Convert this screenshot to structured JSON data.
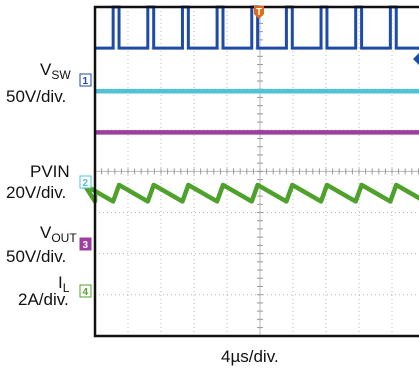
{
  "chart_data": {
    "type": "line",
    "title": "",
    "time_division": "4µs/div.",
    "grid": true,
    "channels": [
      {
        "marker": "1",
        "name_main": "V",
        "name_sub": "SW",
        "scale": "50V/div.",
        "color": "#1f4aa8",
        "waveform": "square",
        "period_div": 1.05,
        "duty": 0.17,
        "low_div": 1.0,
        "high_div": 0.0,
        "start_div": 0.55
      },
      {
        "marker": "",
        "name_main": "",
        "name_sub": "",
        "scale": "",
        "color": "#4ec3d8",
        "waveform": "flat",
        "level_div": 2.05
      },
      {
        "marker": "2",
        "name_main": "PVIN",
        "name_sub": "",
        "scale": "20V/div.",
        "color": "#9c3f9e",
        "waveform": "flat",
        "level_div": 3.05
      },
      {
        "marker": "3",
        "name_main": "V",
        "name_sub": "OUT",
        "scale": "50V/div.",
        "color": "#4ea12a",
        "waveform": "triangle",
        "period_div": 1.05,
        "min_div": 4.73,
        "max_div": 4.33,
        "rise_fraction": 0.17,
        "start_div": 0.55
      },
      {
        "marker": "4",
        "name_main": "I",
        "name_sub": "L",
        "scale": "2A/div.",
        "color": "#4ea12a"
      }
    ],
    "trigger_marker": "T",
    "trigger_color": "#e06a1a",
    "right_marker_color": "#1f4aa8"
  }
}
